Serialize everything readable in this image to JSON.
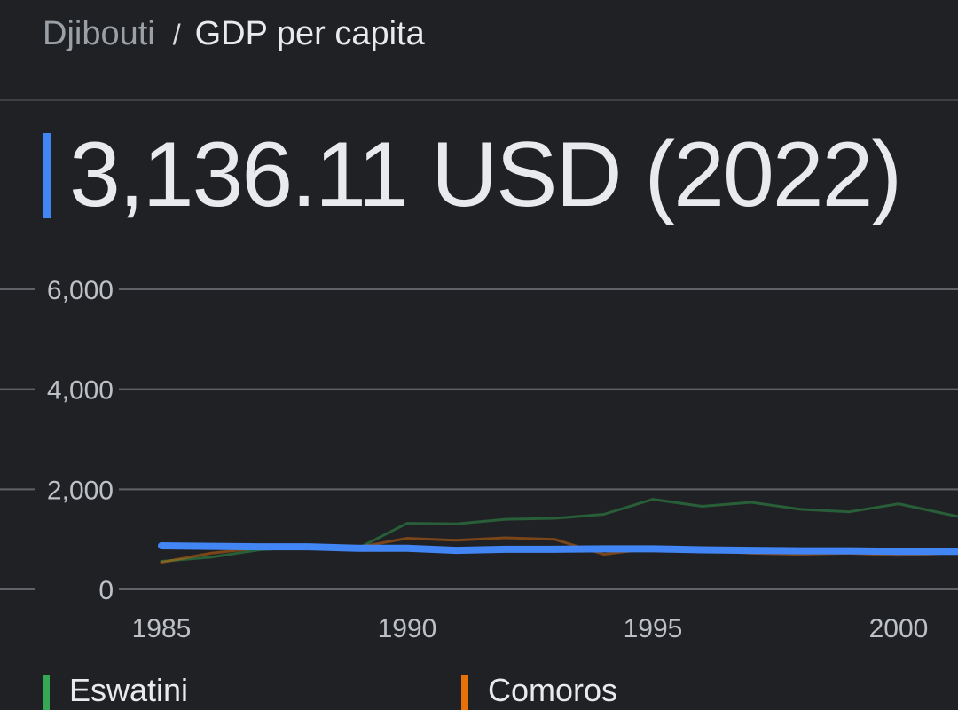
{
  "breadcrumb": {
    "parent": "Djibouti",
    "separator": "/",
    "current": "GDP per capita"
  },
  "headline": {
    "value": "3,136.11 USD (2022)",
    "accent_color": "#4285f4"
  },
  "chart_data": {
    "type": "line",
    "title": "",
    "xlabel": "",
    "ylabel": "",
    "xlim": [
      1985,
      2001.2
    ],
    "ylim": [
      0,
      6000
    ],
    "y_ticks": [
      "0",
      "2,000",
      "4,000",
      "6,000"
    ],
    "y_tick_values": [
      0,
      2000,
      4000,
      6000
    ],
    "x_ticks": [
      "1985",
      "1990",
      "1995",
      "2000"
    ],
    "x_tick_values": [
      1985,
      1990,
      1995,
      2000
    ],
    "grid": true,
    "legend_position": "bottom",
    "series": [
      {
        "name": "Eswatini",
        "color": "#34a853",
        "x": [
          1985,
          1986,
          1987,
          1988,
          1989,
          1990,
          1991,
          1992,
          1993,
          1994,
          1995,
          1996,
          1997,
          1998,
          1999,
          2000,
          2001,
          2001.2
        ],
        "y": [
          560,
          640,
          790,
          850,
          820,
          1320,
          1310,
          1400,
          1420,
          1500,
          1800,
          1660,
          1740,
          1600,
          1550,
          1710,
          1500,
          1460
        ]
      },
      {
        "name": "Comoros",
        "color": "#e8710a",
        "x": [
          1985,
          1986,
          1987,
          1988,
          1989,
          1990,
          1991,
          1992,
          1993,
          1994,
          1995,
          1996,
          1997,
          1998,
          1999,
          2000,
          2001,
          2001.2
        ],
        "y": [
          540,
          720,
          830,
          850,
          840,
          1020,
          980,
          1030,
          1000,
          700,
          820,
          780,
          720,
          700,
          720,
          680,
          720,
          730
        ]
      },
      {
        "name": "Djibouti",
        "color": "#4285f4",
        "x": [
          1985,
          1986,
          1987,
          1988,
          1989,
          1990,
          1991,
          1992,
          1993,
          1994,
          1995,
          1996,
          1997,
          1998,
          1999,
          2000,
          2001,
          2001.2
        ],
        "y": [
          870,
          860,
          850,
          850,
          820,
          820,
          780,
          800,
          800,
          810,
          810,
          790,
          780,
          770,
          770,
          760,
          760,
          760
        ]
      }
    ]
  }
}
